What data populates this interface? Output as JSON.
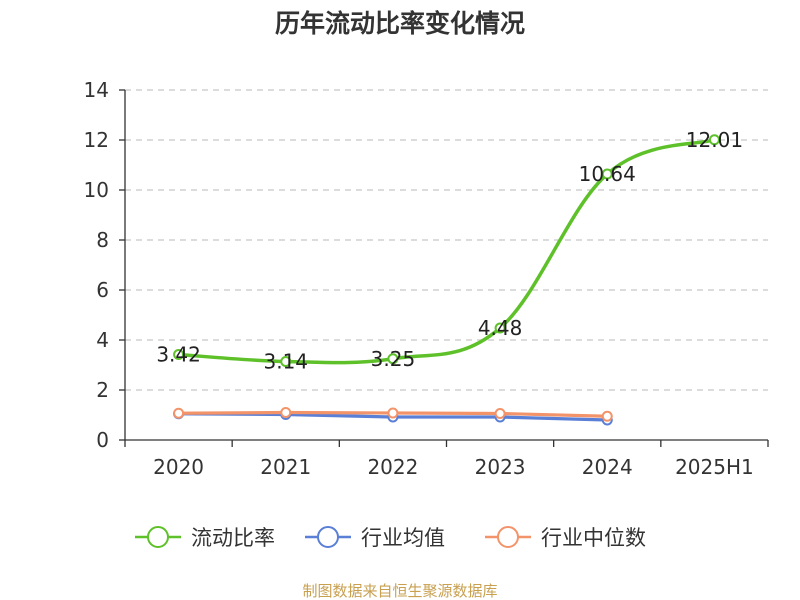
{
  "chart_data": {
    "type": "line",
    "title": "历年流动比率变化情况",
    "source": "制图数据来自恒生聚源数据库",
    "source_color": "#c8a050",
    "categories": [
      "2020",
      "2021",
      "2022",
      "2023",
      "2024",
      "2025H1"
    ],
    "ylim": [
      0,
      14
    ],
    "yticks": [
      0,
      2,
      4,
      6,
      8,
      10,
      12,
      14
    ],
    "grid": true,
    "legend_position": "bottom",
    "series": [
      {
        "name": "流动比率",
        "color": "#5ec12a",
        "values": [
          3.42,
          3.14,
          3.25,
          4.48,
          10.64,
          12.01
        ],
        "labels": [
          "3.42",
          "3.14",
          "3.25",
          "4.48",
          "10.64",
          "12.01"
        ]
      },
      {
        "name": "行业均值",
        "color": "#5a7fd6",
        "values": [
          1.05,
          1.02,
          0.92,
          0.92,
          0.8,
          null
        ]
      },
      {
        "name": "行业中位数",
        "color": "#f3936a",
        "values": [
          1.07,
          1.1,
          1.08,
          1.06,
          0.95,
          null
        ]
      }
    ]
  }
}
